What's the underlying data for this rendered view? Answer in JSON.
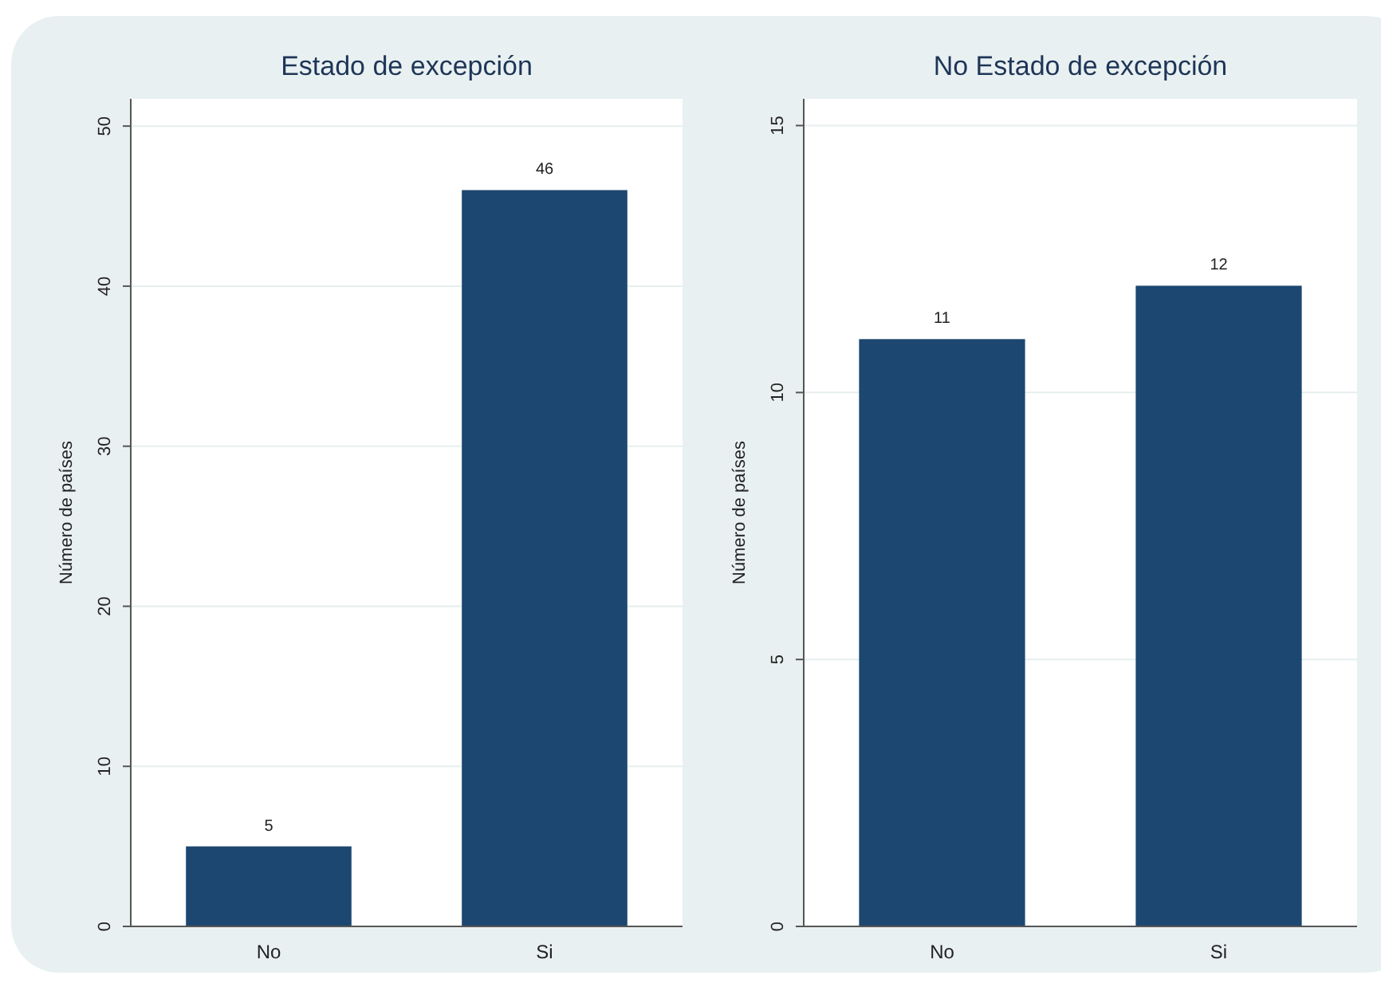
{
  "chart_data": [
    {
      "type": "bar",
      "title": "Estado de excepción",
      "ylabel": "Número de países",
      "categories": [
        "No",
        "Si"
      ],
      "values": [
        5,
        46
      ],
      "color": "#1c4770",
      "ylim": [
        0,
        51.7
      ],
      "yticks": [
        0,
        10,
        20,
        30,
        40,
        50
      ],
      "grid": "y",
      "data_labels": true
    },
    {
      "type": "bar",
      "title": "No Estado de excepción",
      "ylabel": "Número de países",
      "categories": [
        "No",
        "Si"
      ],
      "values": [
        11,
        12
      ],
      "color": "#1c4770",
      "ylim": [
        0,
        15.5
      ],
      "yticks": [
        0,
        5,
        10,
        15
      ],
      "grid": "y",
      "data_labels": true
    }
  ]
}
